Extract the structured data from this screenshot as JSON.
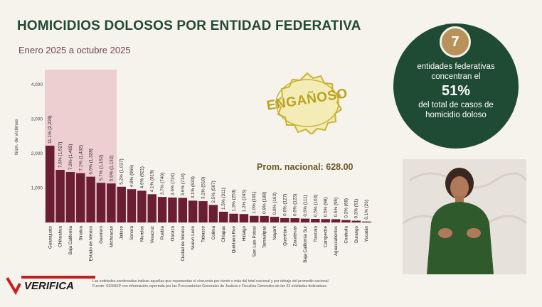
{
  "header": {
    "title": "HOMICIDIOS DOLOSOS POR ENTIDAD FEDERATIVA",
    "subtitle": "Enero 2025 a octubre 2025"
  },
  "stamp": {
    "label": "ENGAÑOSO"
  },
  "badge": {
    "number": "7",
    "line1": "entidades federativas",
    "line2": "concentran el",
    "percent": "51%",
    "line3": "del total de casos de",
    "line4": "homicidio doloso"
  },
  "logo": {
    "text": "VERIFICA"
  },
  "footnote": {
    "line1": "Las entidades sombreadas indican aquellas que representan el cincuenta por ciento o más del total nacional y por debajo del promedio nacional.",
    "line2": "Fuente: SESNSP con información reportada por las Procuradurías Generales de Justicia o Fiscalías Generales de las 32 entidades federativas."
  },
  "colors": {
    "bar": "#6b1e33",
    "highlight": "#e9c1c8",
    "dark_green": "#1f4a33",
    "gold": "#b9915a"
  },
  "chart_data": {
    "type": "bar",
    "ylabel": "Núm. de víctimas",
    "ylim": [
      0,
      4500
    ],
    "yticks": [
      "4,000",
      "3,000",
      "2,000",
      "1,000"
    ],
    "reference_line": {
      "label": "Prom. nacional: 628.00",
      "value": 628
    },
    "highlighted_categories": 7,
    "categories": [
      "Guanajuato",
      "Chihuahua",
      "Baja California",
      "Sinaloa",
      "Estado de México",
      "Guerrero",
      "Michoacán",
      "Jalisco",
      "Sonora",
      "Morelos",
      "Veracruz",
      "Puebla",
      "Oaxaca",
      "Ciudad de México",
      "Nuevo León",
      "Tabasco",
      "Colima",
      "Chiapas",
      "Quintana Roo",
      "Hidalgo",
      "San Luis Potosí",
      "Tamaulipas",
      "Nayarit",
      "Querétaro",
      "Zacatecas",
      "Baja California Sur",
      "Tlaxcala",
      "Campeche",
      "Aguascalientes",
      "Coahuila",
      "Durango",
      "Yucatán"
    ],
    "values": [
      2229,
      1527,
      1465,
      1432,
      1328,
      1152,
      1132,
      1037,
      966,
      921,
      819,
      740,
      724,
      714,
      633,
      618,
      507,
      311,
      253,
      243,
      191,
      188,
      163,
      127,
      123,
      111,
      103,
      98,
      95,
      69,
      51,
      26
    ],
    "labels": [
      "11.1% (2,229)",
      "7.6% (1,527)",
      "7.3% (1,465)",
      "7.1% (1,432)",
      "6.6% (1,328)",
      "5.7% (1,152)",
      "5.6% (1,132)",
      "5.2% (1,037)",
      "4.8% (966)",
      "4.6% (921)",
      "4.1% (819)",
      "3.7% (740)",
      "3.6% (724)",
      "3.6% (714)",
      "3.1% (633)",
      "3.1% (618)",
      "2.5% (507)",
      "1.5% (311)",
      "1.3% (253)",
      "1.2% (243)",
      "1.0% (191)",
      "0.9% (188)",
      "0.8% (163)",
      "0.6% (127)",
      "0.6% (123)",
      "0.6% (111)",
      "0.5% (103)",
      "0.5% (98)",
      "0.5% (95)",
      "0.3% (69)",
      "0.3% (51)",
      "0.1% (26)"
    ]
  }
}
